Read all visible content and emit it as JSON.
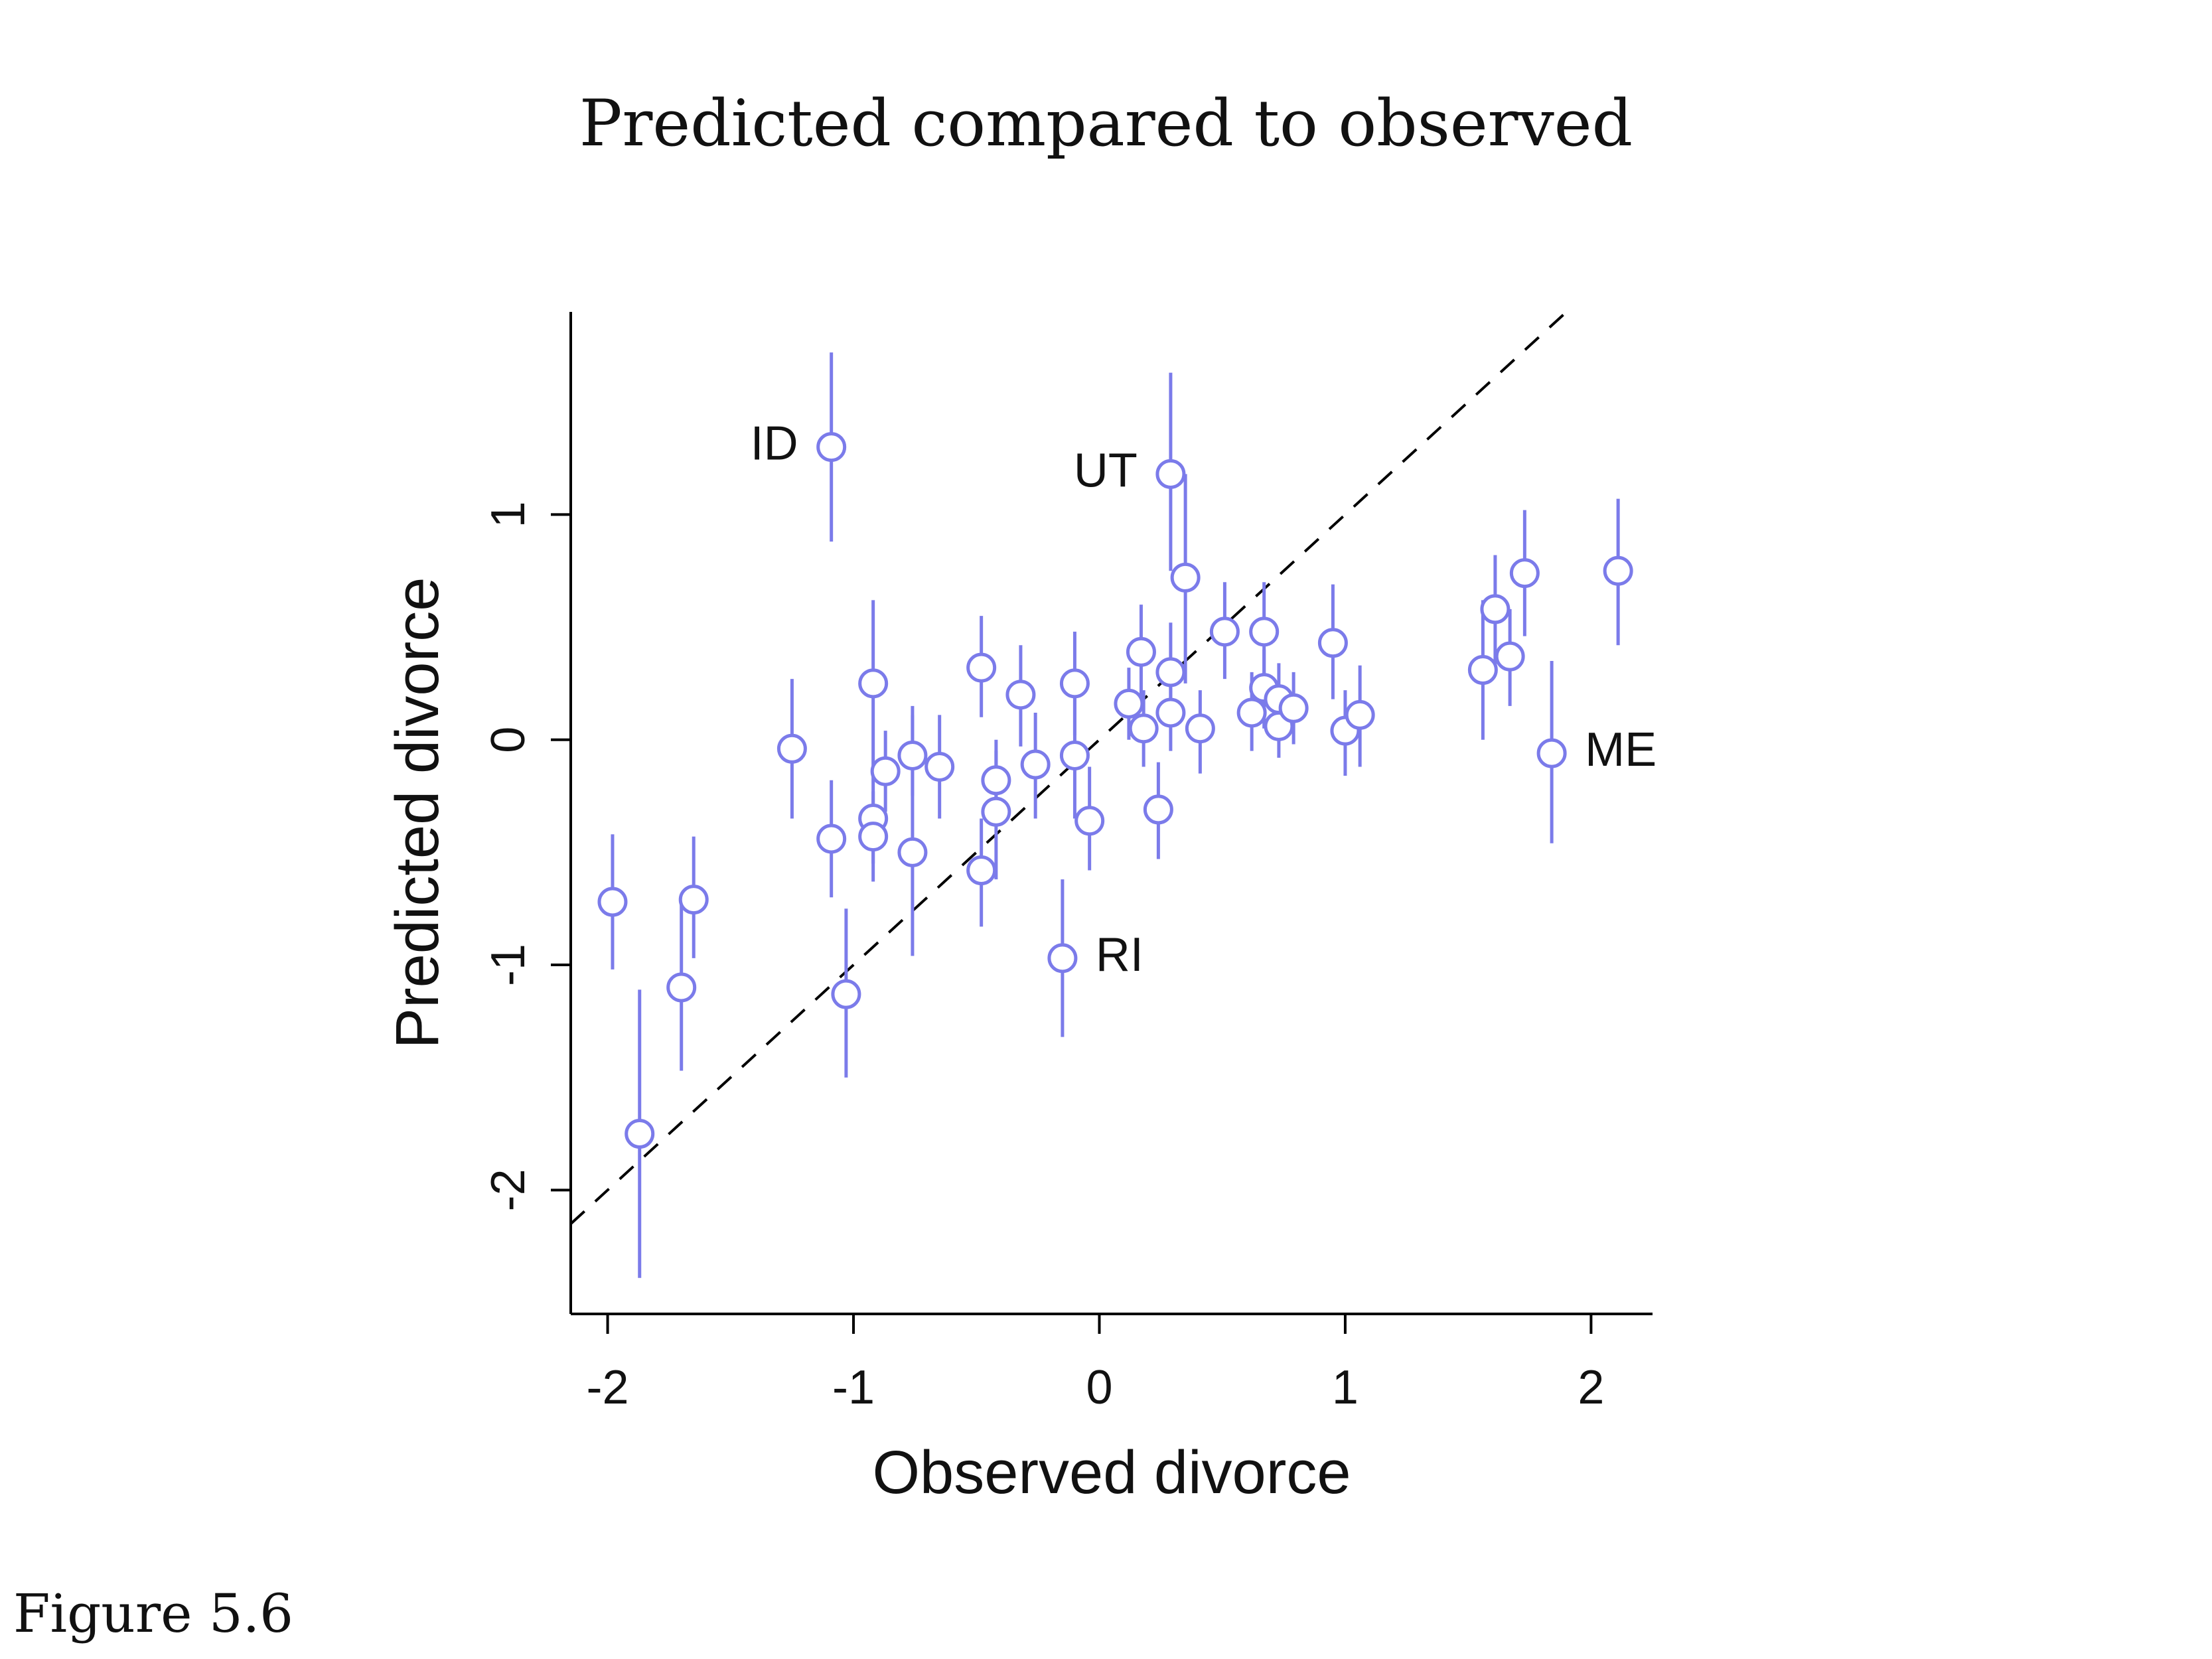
{
  "title": "Predicted compared to observed",
  "caption": "Figure 5.6",
  "chart_data": {
    "type": "scatter",
    "xlabel": "Observed divorce",
    "ylabel": "Predicted divorce",
    "xlim": [
      -2.15,
      2.25
    ],
    "ylim": [
      -2.55,
      1.9
    ],
    "x_ticks": [
      -2,
      -1,
      0,
      1,
      2
    ],
    "y_ticks": [
      -2,
      -1,
      0,
      1
    ],
    "x_tick_labels": [
      "-2",
      "-1",
      "0",
      "1",
      "2"
    ],
    "y_tick_labels": [
      "-2",
      "-1",
      "0",
      "1"
    ],
    "point_color": "#7b7bea",
    "reference_line": {
      "style": "dashed",
      "color": "#000000",
      "slope": 1,
      "intercept": 0,
      "x_range": [
        -2.15,
        1.9
      ]
    },
    "points": [
      {
        "x": -1.98,
        "y": -0.72,
        "lo": -1.02,
        "hi": -0.42,
        "label": ""
      },
      {
        "x": -1.87,
        "y": -1.75,
        "lo": -2.39,
        "hi": -1.11,
        "label": ""
      },
      {
        "x": -1.7,
        "y": -1.1,
        "lo": -1.47,
        "hi": -0.73,
        "label": ""
      },
      {
        "x": -1.65,
        "y": -0.71,
        "lo": -0.97,
        "hi": -0.43,
        "label": ""
      },
      {
        "x": -1.25,
        "y": -0.04,
        "lo": -0.35,
        "hi": 0.27,
        "label": ""
      },
      {
        "x": -1.09,
        "y": 1.3,
        "lo": 0.88,
        "hi": 1.72,
        "label": "ID"
      },
      {
        "x": -1.09,
        "y": -0.44,
        "lo": -0.7,
        "hi": -0.18,
        "label": ""
      },
      {
        "x": -1.03,
        "y": -1.13,
        "lo": -1.5,
        "hi": -0.75,
        "label": ""
      },
      {
        "x": -0.92,
        "y": 0.25,
        "lo": -0.12,
        "hi": 0.62,
        "label": ""
      },
      {
        "x": -0.92,
        "y": -0.35,
        "lo": -0.55,
        "hi": -0.15,
        "label": ""
      },
      {
        "x": -0.92,
        "y": -0.43,
        "lo": -0.63,
        "hi": -0.23,
        "label": ""
      },
      {
        "x": -0.87,
        "y": -0.14,
        "lo": -0.32,
        "hi": 0.04,
        "label": ""
      },
      {
        "x": -0.76,
        "y": -0.07,
        "lo": -0.25,
        "hi": 0.11,
        "label": ""
      },
      {
        "x": -0.76,
        "y": -0.5,
        "lo": -0.96,
        "hi": 0.15,
        "label": ""
      },
      {
        "x": -0.65,
        "y": -0.12,
        "lo": -0.35,
        "hi": 0.11,
        "label": ""
      },
      {
        "x": -0.48,
        "y": 0.32,
        "lo": 0.1,
        "hi": 0.55,
        "label": ""
      },
      {
        "x": -0.48,
        "y": -0.58,
        "lo": -0.83,
        "hi": -0.35,
        "label": ""
      },
      {
        "x": -0.42,
        "y": -0.18,
        "lo": -0.35,
        "hi": 0.0,
        "label": ""
      },
      {
        "x": -0.42,
        "y": -0.32,
        "lo": -0.62,
        "hi": -0.05,
        "label": ""
      },
      {
        "x": -0.32,
        "y": 0.2,
        "lo": -0.03,
        "hi": 0.42,
        "label": ""
      },
      {
        "x": -0.26,
        "y": -0.11,
        "lo": -0.35,
        "hi": 0.12,
        "label": ""
      },
      {
        "x": -0.1,
        "y": 0.25,
        "lo": 0.02,
        "hi": 0.48,
        "label": ""
      },
      {
        "x": -0.1,
        "y": -0.07,
        "lo": -0.35,
        "hi": 0.2,
        "label": ""
      },
      {
        "x": -0.04,
        "y": -0.36,
        "lo": -0.58,
        "hi": -0.12,
        "label": ""
      },
      {
        "x": -0.15,
        "y": -0.97,
        "lo": -1.32,
        "hi": -0.62,
        "label": "RI"
      },
      {
        "x": 0.12,
        "y": 0.16,
        "lo": 0.0,
        "hi": 0.32,
        "label": ""
      },
      {
        "x": 0.17,
        "y": 0.39,
        "lo": 0.18,
        "hi": 0.6,
        "label": ""
      },
      {
        "x": 0.18,
        "y": 0.05,
        "lo": -0.12,
        "hi": 0.22,
        "label": ""
      },
      {
        "x": 0.24,
        "y": -0.31,
        "lo": -0.53,
        "hi": -0.1,
        "label": ""
      },
      {
        "x": 0.29,
        "y": 1.18,
        "lo": 0.75,
        "hi": 1.63,
        "label": "UT"
      },
      {
        "x": 0.29,
        "y": 0.3,
        "lo": 0.08,
        "hi": 0.52,
        "label": ""
      },
      {
        "x": 0.29,
        "y": 0.12,
        "lo": -0.05,
        "hi": 0.3,
        "label": ""
      },
      {
        "x": 0.35,
        "y": 0.72,
        "lo": 0.25,
        "hi": 1.18,
        "label": ""
      },
      {
        "x": 0.41,
        "y": 0.05,
        "lo": -0.15,
        "hi": 0.22,
        "label": ""
      },
      {
        "x": 0.51,
        "y": 0.48,
        "lo": 0.27,
        "hi": 0.7,
        "label": ""
      },
      {
        "x": 0.62,
        "y": 0.12,
        "lo": -0.05,
        "hi": 0.3,
        "label": ""
      },
      {
        "x": 0.67,
        "y": 0.48,
        "lo": 0.28,
        "hi": 0.7,
        "label": ""
      },
      {
        "x": 0.67,
        "y": 0.23,
        "lo": 0.05,
        "hi": 0.4,
        "label": ""
      },
      {
        "x": 0.73,
        "y": 0.06,
        "lo": -0.08,
        "hi": 0.22,
        "label": ""
      },
      {
        "x": 0.73,
        "y": 0.18,
        "lo": 0.02,
        "hi": 0.34,
        "label": ""
      },
      {
        "x": 0.79,
        "y": 0.14,
        "lo": -0.02,
        "hi": 0.3,
        "label": ""
      },
      {
        "x": 0.95,
        "y": 0.43,
        "lo": 0.18,
        "hi": 0.69,
        "label": ""
      },
      {
        "x": 1.0,
        "y": 0.04,
        "lo": -0.16,
        "hi": 0.22,
        "label": ""
      },
      {
        "x": 1.06,
        "y": 0.11,
        "lo": -0.12,
        "hi": 0.33,
        "label": ""
      },
      {
        "x": 1.56,
        "y": 0.31,
        "lo": 0.0,
        "hi": 0.62,
        "label": ""
      },
      {
        "x": 1.61,
        "y": 0.58,
        "lo": 0.32,
        "hi": 0.82,
        "label": ""
      },
      {
        "x": 1.67,
        "y": 0.37,
        "lo": 0.15,
        "hi": 0.58,
        "label": ""
      },
      {
        "x": 1.73,
        "y": 0.74,
        "lo": 0.46,
        "hi": 1.02,
        "label": ""
      },
      {
        "x": 1.84,
        "y": -0.06,
        "lo": -0.46,
        "hi": 0.35,
        "label": "ME"
      },
      {
        "x": 2.11,
        "y": 0.75,
        "lo": 0.42,
        "hi": 1.07,
        "label": ""
      }
    ]
  }
}
